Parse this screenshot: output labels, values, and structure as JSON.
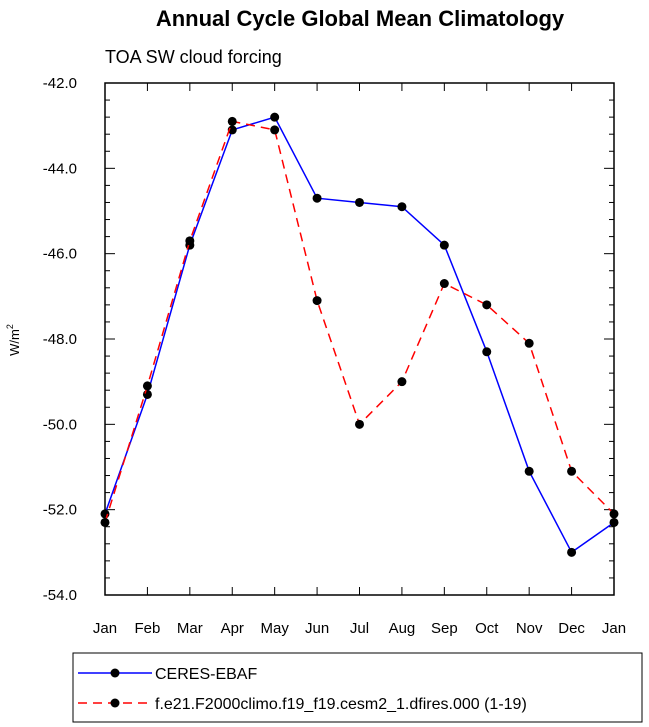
{
  "chart_data": {
    "type": "line",
    "title": "Annual Cycle Global Mean Climatology",
    "subtitle": "TOA SW cloud forcing",
    "ylabel": "W/m",
    "ylabel_sup": "2",
    "xlabel": "",
    "ylim": [
      -54.0,
      -42.0
    ],
    "yticks": [
      -42.0,
      -44.0,
      -46.0,
      -48.0,
      -50.0,
      -52.0,
      -54.0
    ],
    "ytick_labels": [
      "-42.0",
      "-44.0",
      "-46.0",
      "-48.0",
      "-50.0",
      "-52.0",
      "-54.0"
    ],
    "categories": [
      "Jan",
      "Feb",
      "Mar",
      "Apr",
      "May",
      "Jun",
      "Jul",
      "Aug",
      "Sep",
      "Oct",
      "Nov",
      "Dec",
      "Jan"
    ],
    "series": [
      {
        "name": "CERES-EBAF",
        "color": "#0000ff",
        "dash": "solid",
        "values": [
          -52.1,
          -49.3,
          -45.8,
          -43.1,
          -42.8,
          -44.7,
          -44.8,
          -44.9,
          -45.8,
          -48.3,
          -51.1,
          -53.0,
          -52.3
        ]
      },
      {
        "name": "f.e21.F2000climo.f19_f19.cesm2_1.dfires.000 (1-19)",
        "color": "#ff0000",
        "dash": "dashed",
        "values": [
          -52.3,
          -49.1,
          -45.7,
          -42.9,
          -43.1,
          -47.1,
          -50.0,
          -49.0,
          -46.7,
          -47.2,
          -48.1,
          -51.1,
          -52.1
        ]
      }
    ],
    "legend_position": "bottom",
    "grid": false
  }
}
